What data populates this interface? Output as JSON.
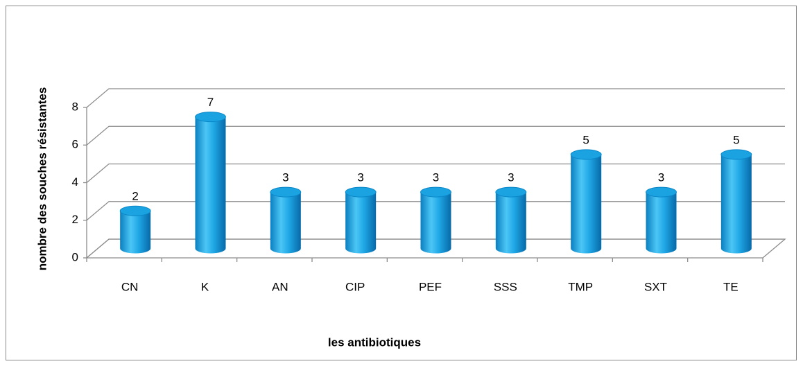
{
  "chart_data": {
    "type": "bar",
    "categories": [
      "CN",
      "K",
      "AN",
      "CIP",
      "PEF",
      "SSS",
      "TMP",
      "SXT",
      "TE"
    ],
    "values": [
      2,
      7,
      3,
      3,
      3,
      3,
      5,
      3,
      5
    ],
    "color": "#1aa3e0",
    "ylim": [
      0,
      8
    ],
    "yticks": [
      0,
      2,
      4,
      6,
      8
    ],
    "grid": true,
    "x_label": "les antibiotiques",
    "y_label": "nombre des souches résistantes"
  }
}
